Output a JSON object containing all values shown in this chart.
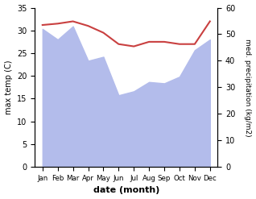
{
  "months": [
    "Jan",
    "Feb",
    "Mar",
    "Apr",
    "May",
    "Jun",
    "Jul",
    "Aug",
    "Sep",
    "Oct",
    "Nov",
    "Dec"
  ],
  "temp_line": [
    31.2,
    31.5,
    32.0,
    31.0,
    29.5,
    27.0,
    26.5,
    27.5,
    27.5,
    27.0,
    27.0,
    32.0
  ],
  "precip_values": [
    52.0,
    48.0,
    53.0,
    40.0,
    41.5,
    27.0,
    28.5,
    32.0,
    31.5,
    34.0,
    44.0,
    48.0
  ],
  "ylim_left": [
    0,
    35
  ],
  "ylim_right": [
    0,
    60
  ],
  "ylabel_left": "max temp (C)",
  "ylabel_right": "med. precipitation (kg/m2)",
  "xlabel": "date (month)",
  "fill_color": "#b3bceb",
  "line_color": "#c94040",
  "background_color": "#ffffff",
  "yticks_left": [
    0,
    5,
    10,
    15,
    20,
    25,
    30,
    35
  ],
  "yticks_right": [
    0,
    10,
    20,
    30,
    40,
    50,
    60
  ]
}
